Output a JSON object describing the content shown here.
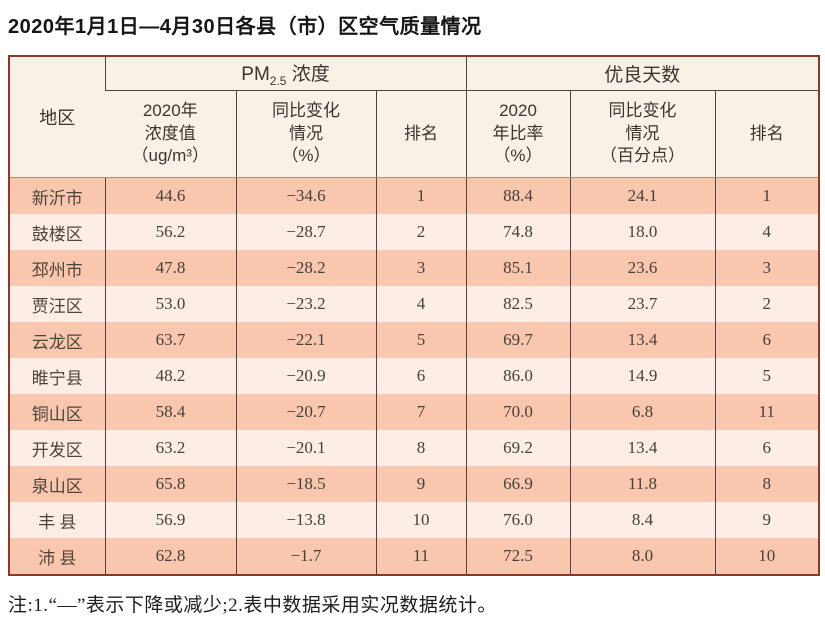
{
  "title": "2020年1月1日—4月30日各县（市）区空气质量情况",
  "table": {
    "region_header": "地区",
    "pm_group": {
      "prefix": "PM",
      "sub": "2.5",
      "suffix": " 浓度"
    },
    "good_group": "优良天数",
    "sub_headers": {
      "pm_value": "2020年\n浓度值\n（ug/m³）",
      "pm_change": "同比变化\n情况\n（%）",
      "pm_rank": "排名",
      "good_ratio": "2020\n年比率\n（%）",
      "good_change": "同比变化\n情况\n（百分点）",
      "good_rank": "排名"
    },
    "rows": [
      [
        "新沂市",
        "44.6",
        "−34.6",
        "1",
        "88.4",
        "24.1",
        "1"
      ],
      [
        "鼓楼区",
        "56.2",
        "−28.7",
        "2",
        "74.8",
        "18.0",
        "4"
      ],
      [
        "邳州市",
        "47.8",
        "−28.2",
        "3",
        "85.1",
        "23.6",
        "3"
      ],
      [
        "贾汪区",
        "53.0",
        "−23.2",
        "4",
        "82.5",
        "23.7",
        "2"
      ],
      [
        "云龙区",
        "63.7",
        "−22.1",
        "5",
        "69.7",
        "13.4",
        "6"
      ],
      [
        "睢宁县",
        "48.2",
        "−20.9",
        "6",
        "86.0",
        "14.9",
        "5"
      ],
      [
        "铜山区",
        "58.4",
        "−20.7",
        "7",
        "70.0",
        "6.8",
        "11"
      ],
      [
        "开发区",
        "63.2",
        "−20.1",
        "8",
        "69.2",
        "13.4",
        "6"
      ],
      [
        "泉山区",
        "65.8",
        "−18.5",
        "9",
        "66.9",
        "11.8",
        "8"
      ],
      [
        "丰 县",
        "56.9",
        "−13.8",
        "10",
        "76.0",
        "8.4",
        "9"
      ],
      [
        "沛 县",
        "62.8",
        "−1.7",
        "11",
        "72.5",
        "8.0",
        "10"
      ]
    ]
  },
  "note": "注:1.“—”表示下降或减少;2.表中数据采用实况数据统计。",
  "colors": {
    "row_odd": "#f8c7ad",
    "row_even": "#fceee7",
    "header_bg": "#faf1e6",
    "outer_border": "#8f3826",
    "inner_grid": "#4d4440",
    "header_body_separator": "#d57f63"
  },
  "chart_data": {
    "type": "table",
    "title": "2020年1月1日—4月30日各县（市）区空气质量情况",
    "column_groups": [
      "地区",
      "PM2.5浓度",
      "优良天数"
    ],
    "columns": [
      "地区",
      "PM2.5浓度 2020年浓度值（ug/m³）",
      "PM2.5浓度 同比变化情况（%）",
      "PM2.5浓度 排名",
      "优良天数 2020年比率（%）",
      "优良天数 同比变化情况（百分点）",
      "优良天数 排名"
    ],
    "rows": [
      [
        "新沂市",
        44.6,
        -34.6,
        1,
        88.4,
        24.1,
        1
      ],
      [
        "鼓楼区",
        56.2,
        -28.7,
        2,
        74.8,
        18.0,
        4
      ],
      [
        "邳州市",
        47.8,
        -28.2,
        3,
        85.1,
        23.6,
        3
      ],
      [
        "贾汪区",
        53.0,
        -23.2,
        4,
        82.5,
        23.7,
        2
      ],
      [
        "云龙区",
        63.7,
        -22.1,
        5,
        69.7,
        13.4,
        6
      ],
      [
        "睢宁县",
        48.2,
        -20.9,
        6,
        86.0,
        14.9,
        5
      ],
      [
        "铜山区",
        58.4,
        -20.7,
        7,
        70.0,
        6.8,
        11
      ],
      [
        "开发区",
        63.2,
        -20.1,
        8,
        69.2,
        13.4,
        6
      ],
      [
        "泉山区",
        65.8,
        -18.5,
        9,
        66.9,
        11.8,
        8
      ],
      [
        "丰县",
        56.9,
        -13.8,
        10,
        76.0,
        8.4,
        9
      ],
      [
        "沛县",
        62.8,
        -1.7,
        11,
        72.5,
        8.0,
        10
      ]
    ],
    "note": "注:1.“—”表示下降或减少;2.表中数据采用实况数据统计。"
  }
}
